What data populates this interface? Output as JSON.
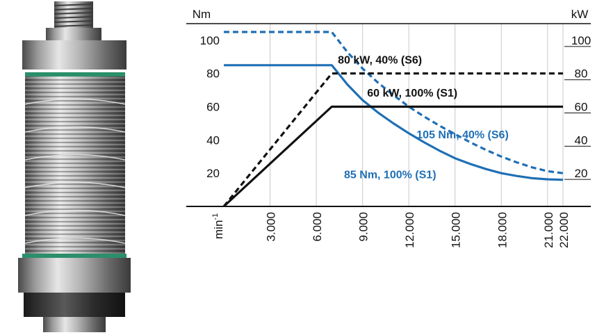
{
  "colors": {
    "blue": "#1f6fb5",
    "black": "#111111",
    "grid": "#c8c8c8"
  },
  "product": {
    "image": "motor-spindle-icon"
  },
  "chart_data": {
    "type": "line",
    "left_axis_label": "Nm",
    "right_axis_label": "kW",
    "x_axis_label": "min",
    "x_axis_label_sup": "-1",
    "xlim": [
      0,
      22000
    ],
    "ylim_left": [
      0,
      110
    ],
    "ylim_right": [
      0,
      110
    ],
    "x_ticks": [
      {
        "value": 3000,
        "label": "3.000"
      },
      {
        "value": 6000,
        "label": "6.000"
      },
      {
        "value": 9000,
        "label": "9.000"
      },
      {
        "value": 12000,
        "label": "12.000"
      },
      {
        "value": 15000,
        "label": "15.000"
      },
      {
        "value": 18000,
        "label": "18.000"
      },
      {
        "value": 21000,
        "label": "21.000"
      },
      {
        "value": 22000,
        "label": "22.000"
      }
    ],
    "y_ticks_left": [
      {
        "value": 20,
        "label": "20"
      },
      {
        "value": 40,
        "label": "40"
      },
      {
        "value": 60,
        "label": "60"
      },
      {
        "value": 80,
        "label": "80"
      },
      {
        "value": 100,
        "label": "100"
      }
    ],
    "y_ticks_right": [
      {
        "value": 20,
        "label": "20"
      },
      {
        "value": 40,
        "label": "40"
      },
      {
        "value": 60,
        "label": "60"
      },
      {
        "value": 80,
        "label": "80"
      },
      {
        "value": 100,
        "label": "100"
      }
    ],
    "series": [
      {
        "name": "105 Nm, 40% (S6)",
        "quantity": "torque",
        "style": "dashed",
        "color": "#1f6fb5",
        "points": [
          [
            0,
            105
          ],
          [
            7000,
            105
          ],
          [
            8000,
            93
          ],
          [
            9000,
            83
          ],
          [
            10000,
            74.5
          ],
          [
            11000,
            67
          ],
          [
            12000,
            60
          ],
          [
            13000,
            54
          ],
          [
            14000,
            48.5
          ],
          [
            15000,
            43.5
          ],
          [
            16000,
            38.5
          ],
          [
            17000,
            34
          ],
          [
            18000,
            30
          ],
          [
            19000,
            26.5
          ],
          [
            20000,
            23.5
          ],
          [
            21000,
            21.2
          ],
          [
            22000,
            20
          ]
        ]
      },
      {
        "name": "85 Nm, 100% (S1)",
        "quantity": "torque",
        "style": "solid",
        "color": "#1f6fb5",
        "points": [
          [
            0,
            85
          ],
          [
            7000,
            85
          ],
          [
            8000,
            73.5
          ],
          [
            9000,
            64
          ],
          [
            10000,
            56.5
          ],
          [
            11000,
            50
          ],
          [
            12000,
            44
          ],
          [
            13000,
            38.5
          ],
          [
            14000,
            33.5
          ],
          [
            15000,
            29
          ],
          [
            16000,
            25.5
          ],
          [
            17000,
            22.5
          ],
          [
            18000,
            20
          ],
          [
            19000,
            18.3
          ],
          [
            20000,
            17
          ],
          [
            21000,
            16.3
          ],
          [
            22000,
            16
          ]
        ]
      },
      {
        "name": "80 kW, 40% (S6)",
        "quantity": "power",
        "style": "dashed",
        "color": "#111111",
        "points": [
          [
            0,
            0
          ],
          [
            7000,
            80
          ],
          [
            22000,
            80
          ]
        ]
      },
      {
        "name": "60 kW, 100% (S1)",
        "quantity": "power",
        "style": "solid",
        "color": "#111111",
        "points": [
          [
            0,
            0
          ],
          [
            7000,
            60
          ],
          [
            22000,
            60
          ]
        ]
      }
    ],
    "labels": [
      {
        "text": "80 kW, 40% (S6)",
        "series": 2,
        "x": 7400,
        "y": 86
      },
      {
        "text": "60 kW, 100% (S1)",
        "series": 3,
        "x": 9300,
        "y": 66
      },
      {
        "text": "105 Nm, 40% (S6)",
        "series": 0,
        "x": 12500,
        "y": 41
      },
      {
        "text": "85 Nm, 100% (S1)",
        "series": 1,
        "x": 7800,
        "y": 17
      }
    ],
    "grid": "vertical"
  }
}
